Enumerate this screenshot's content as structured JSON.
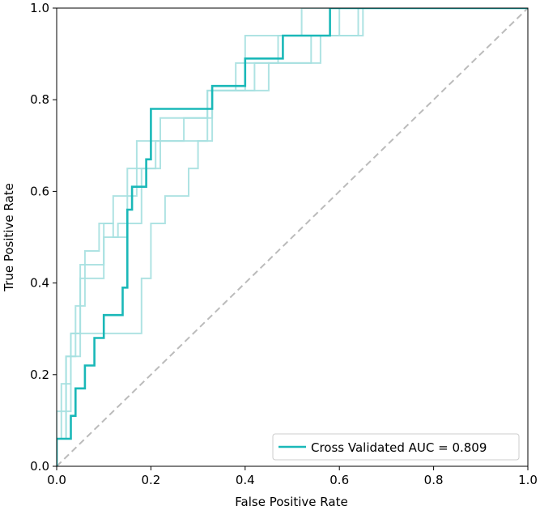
{
  "chart_data": {
    "type": "line",
    "title": "",
    "xlabel": "False Positive Rate",
    "ylabel": "True Positive Rate",
    "xlim": [
      0,
      1
    ],
    "ylim": [
      0,
      1
    ],
    "x_ticks": [
      "0.0",
      "0.2",
      "0.4",
      "0.6",
      "0.8",
      "1.0"
    ],
    "y_ticks": [
      "0.0",
      "0.2",
      "0.4",
      "0.6",
      "0.8",
      "1.0"
    ],
    "grid": false,
    "legend_position": "lower-right",
    "legend": [
      {
        "label": "Cross Validated AUC = 0.809",
        "color": "#1ab8b8"
      }
    ],
    "diagonal": {
      "x": [
        0,
        1
      ],
      "y": [
        0,
        1
      ],
      "style": "dashed",
      "color": "#bbbbbb"
    },
    "fold_color": "#a6e0e0",
    "mean_color": "#1ab8b8",
    "series": [
      {
        "type": "fold",
        "x": [
          0,
          0,
          0.02,
          0.02,
          0.03,
          0.03,
          0.05,
          0.05,
          0.1,
          0.1,
          0.12,
          0.12,
          0.15,
          0.15,
          0.17,
          0.17,
          0.2,
          0.2,
          0.33,
          0.33,
          0.4,
          0.4,
          0.52,
          0.52,
          1
        ],
        "y": [
          0,
          0.06,
          0.06,
          0.24,
          0.24,
          0.29,
          0.29,
          0.41,
          0.41,
          0.53,
          0.53,
          0.5,
          0.5,
          0.65,
          0.65,
          0.71,
          0.71,
          0.71,
          0.71,
          0.82,
          0.82,
          0.94,
          0.94,
          1,
          1
        ]
      },
      {
        "type": "fold",
        "x": [
          0,
          0,
          0.01,
          0.01,
          0.03,
          0.03,
          0.05,
          0.05,
          0.18,
          0.18,
          0.2,
          0.2,
          0.23,
          0.23,
          0.28,
          0.28,
          0.3,
          0.3,
          0.32,
          0.32,
          0.45,
          0.45,
          0.54,
          0.54,
          0.6,
          0.6,
          0.64,
          0.64,
          1
        ],
        "y": [
          0,
          0.06,
          0.06,
          0.12,
          0.12,
          0.24,
          0.24,
          0.29,
          0.29,
          0.41,
          0.41,
          0.53,
          0.53,
          0.59,
          0.59,
          0.65,
          0.65,
          0.71,
          0.71,
          0.82,
          0.82,
          0.88,
          0.88,
          0.94,
          0.94,
          1,
          1,
          1,
          1
        ]
      },
      {
        "type": "fold",
        "x": [
          0,
          0,
          0.01,
          0.01,
          0.02,
          0.02,
          0.04,
          0.04,
          0.06,
          0.06,
          0.09,
          0.09,
          0.12,
          0.12,
          0.17,
          0.17,
          0.21,
          0.21,
          0.27,
          0.27,
          0.33,
          0.33,
          0.42,
          0.42,
          0.56,
          0.56,
          0.64,
          0.64,
          1
        ],
        "y": [
          0,
          0.12,
          0.12,
          0.18,
          0.18,
          0.24,
          0.24,
          0.35,
          0.35,
          0.47,
          0.47,
          0.53,
          0.53,
          0.59,
          0.59,
          0.65,
          0.65,
          0.71,
          0.71,
          0.76,
          0.76,
          0.82,
          0.82,
          0.88,
          0.88,
          0.94,
          0.94,
          1,
          1
        ]
      },
      {
        "type": "fold",
        "x": [
          0,
          0,
          0.02,
          0.02,
          0.03,
          0.03,
          0.05,
          0.05,
          0.07,
          0.07,
          0.1,
          0.1,
          0.13,
          0.13,
          0.18,
          0.18,
          0.22,
          0.22,
          0.24,
          0.24,
          0.32,
          0.32,
          0.38,
          0.38,
          0.47,
          0.47,
          0.55,
          0.55,
          0.65,
          0.65,
          1
        ],
        "y": [
          0,
          0.06,
          0.06,
          0.18,
          0.18,
          0.29,
          0.29,
          0.44,
          0.44,
          0.44,
          0.44,
          0.5,
          0.5,
          0.53,
          0.53,
          0.65,
          0.65,
          0.76,
          0.76,
          0.76,
          0.76,
          0.82,
          0.82,
          0.88,
          0.88,
          0.94,
          0.94,
          0.94,
          0.94,
          1,
          1
        ]
      },
      {
        "type": "mean",
        "name": "Cross Validated AUC = 0.809",
        "x": [
          0,
          0,
          0.03,
          0.03,
          0.04,
          0.04,
          0.06,
          0.06,
          0.08,
          0.08,
          0.1,
          0.1,
          0.14,
          0.14,
          0.15,
          0.15,
          0.16,
          0.16,
          0.19,
          0.19,
          0.2,
          0.2,
          0.33,
          0.33,
          0.4,
          0.4,
          0.48,
          0.48,
          0.58,
          0.58,
          1
        ],
        "y": [
          0,
          0.06,
          0.06,
          0.11,
          0.11,
          0.17,
          0.17,
          0.22,
          0.22,
          0.28,
          0.28,
          0.33,
          0.33,
          0.39,
          0.39,
          0.56,
          0.56,
          0.61,
          0.61,
          0.67,
          0.67,
          0.78,
          0.78,
          0.83,
          0.83,
          0.89,
          0.89,
          0.94,
          0.94,
          1,
          1
        ]
      }
    ]
  }
}
